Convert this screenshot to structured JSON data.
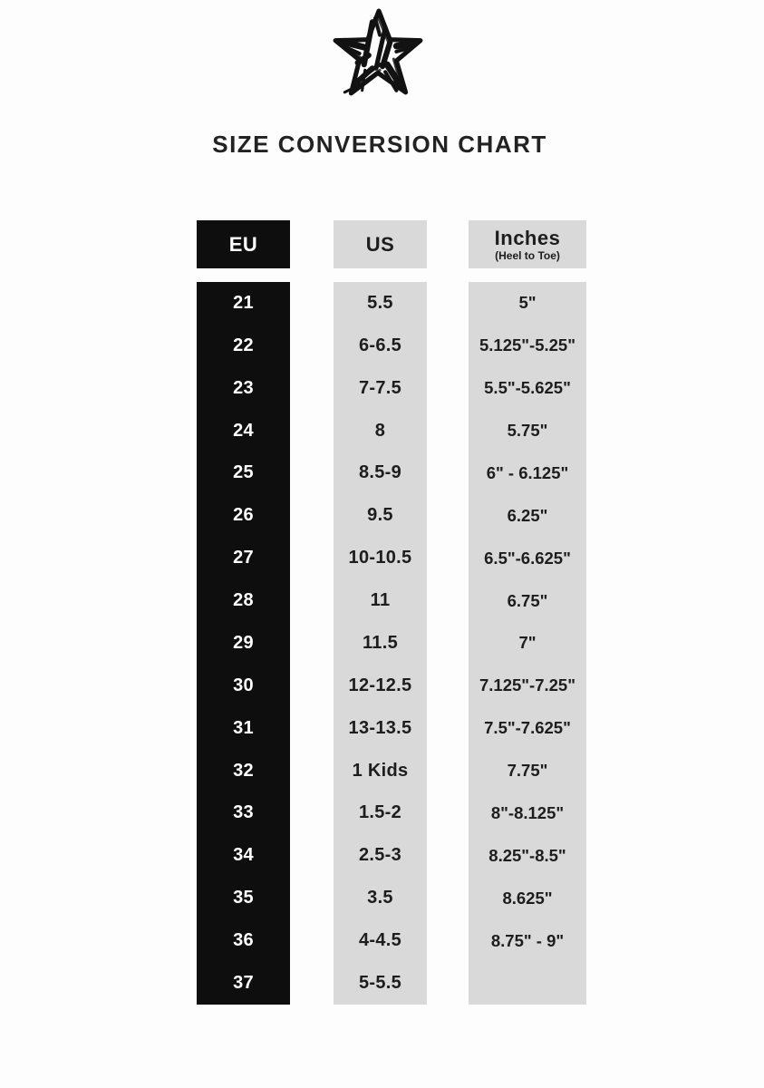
{
  "page": {
    "title": "SIZE CONVERSION CHART"
  },
  "logo": {
    "icon": "hand-drawn-star"
  },
  "colors": {
    "eu_column_bg": "#0e0e0e",
    "eu_column_text": "#ffffff",
    "gray_column_bg": "#d9d9d9",
    "body_text": "#1d1d1d",
    "page_bg": "#fdfdfd"
  },
  "chart_data": {
    "type": "table",
    "title": "SIZE CONVERSION CHART",
    "columns": [
      {
        "key": "eu",
        "label": "EU",
        "sublabel": ""
      },
      {
        "key": "us",
        "label": "US",
        "sublabel": ""
      },
      {
        "key": "inches",
        "label": "Inches",
        "sublabel": "(Heel to Toe)"
      }
    ],
    "rows": [
      {
        "eu": "21",
        "us": "5.5",
        "inches": "5\""
      },
      {
        "eu": "22",
        "us": "6-6.5",
        "inches": "5.125\"-5.25\""
      },
      {
        "eu": "23",
        "us": "7-7.5",
        "inches": "5.5\"-5.625\""
      },
      {
        "eu": "24",
        "us": "8",
        "inches": "5.75\""
      },
      {
        "eu": "25",
        "us": "8.5-9",
        "inches": "6\" - 6.125\""
      },
      {
        "eu": "26",
        "us": "9.5",
        "inches": "6.25\""
      },
      {
        "eu": "27",
        "us": "10-10.5",
        "inches": "6.5\"-6.625\""
      },
      {
        "eu": "28",
        "us": "11",
        "inches": "6.75\""
      },
      {
        "eu": "29",
        "us": "11.5",
        "inches": "7\""
      },
      {
        "eu": "30",
        "us": "12-12.5",
        "inches": "7.125\"-7.25\""
      },
      {
        "eu": "31",
        "us": "13-13.5",
        "inches": "7.5\"-7.625\""
      },
      {
        "eu": "32",
        "us": "1 Kids",
        "inches": "7.75\""
      },
      {
        "eu": "33",
        "us": "1.5-2",
        "inches": "8\"-8.125\""
      },
      {
        "eu": "34",
        "us": "2.5-3",
        "inches": "8.25\"-8.5\""
      },
      {
        "eu": "35",
        "us": "3.5",
        "inches": "8.625\""
      },
      {
        "eu": "36",
        "us": "4-4.5",
        "inches": "8.75\" - 9\""
      },
      {
        "eu": "37",
        "us": "5-5.5",
        "inches": ""
      }
    ]
  }
}
